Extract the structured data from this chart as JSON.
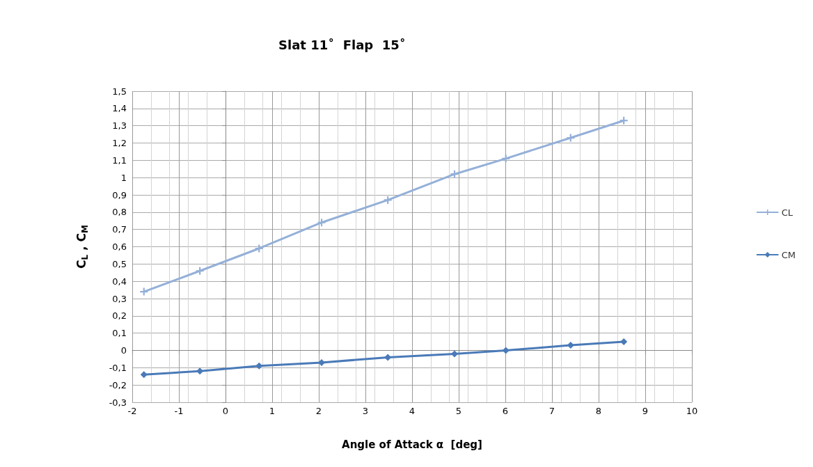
{
  "chart_data": {
    "type": "line",
    "title": "Slat 11˚  Flap  15˚",
    "xlabel": "Angle of Attack α  [deg]",
    "ylabel": "C$_{L}$ , C$_{M}$",
    "series": [
      {
        "name": "CL",
        "color": "#94b0d8",
        "marker": "cross",
        "x": [
          -1.75,
          -0.55,
          0.72,
          2.06,
          3.48,
          4.91,
          6.01,
          7.4,
          8.54
        ],
        "values": [
          0.34,
          0.46,
          0.59,
          0.74,
          0.87,
          1.02,
          1.11,
          1.23,
          1.33
        ]
      },
      {
        "name": "CM",
        "color": "#4a7ab8",
        "marker": "diamond",
        "x": [
          -1.75,
          -0.55,
          0.72,
          2.06,
          3.48,
          4.91,
          6.01,
          7.4,
          8.54
        ],
        "values": [
          -0.14,
          -0.12,
          -0.09,
          -0.07,
          -0.04,
          -0.02,
          0.0,
          0.03,
          0.05
        ]
      }
    ],
    "xlim": [
      -2,
      10
    ],
    "xticks": [
      -2,
      -1,
      0,
      1,
      2,
      3,
      4,
      5,
      6,
      7,
      8,
      9,
      10
    ],
    "ylim": [
      -0.3,
      1.5
    ],
    "yticks": [
      {
        "value": -0.3,
        "label": "-0,3"
      },
      {
        "value": -0.2,
        "label": "-0,2"
      },
      {
        "value": -0.1,
        "label": "-0,1"
      },
      0,
      {
        "value": 0.1,
        "label": "0,1"
      },
      {
        "value": 0.2,
        "label": "0,2"
      },
      {
        "value": 0.3,
        "label": "0,3"
      },
      {
        "value": 0.4,
        "label": "0,4"
      },
      {
        "value": 0.5,
        "label": "0,5"
      },
      {
        "value": 0.6,
        "label": "0,6"
      },
      {
        "value": 0.7,
        "label": "0,7"
      },
      {
        "value": 0.8,
        "label": "0,8"
      },
      {
        "value": 0.9,
        "label": "0,9"
      },
      1,
      {
        "value": 1.1,
        "label": "1,1"
      },
      {
        "value": 1.2,
        "label": "1,2"
      },
      {
        "value": 1.3,
        "label": "1,3"
      },
      {
        "value": 1.4,
        "label": "1,4"
      },
      {
        "value": 1.5,
        "label": "1,5"
      }
    ],
    "grid": true,
    "legend": "right",
    "line_style": "solid"
  }
}
